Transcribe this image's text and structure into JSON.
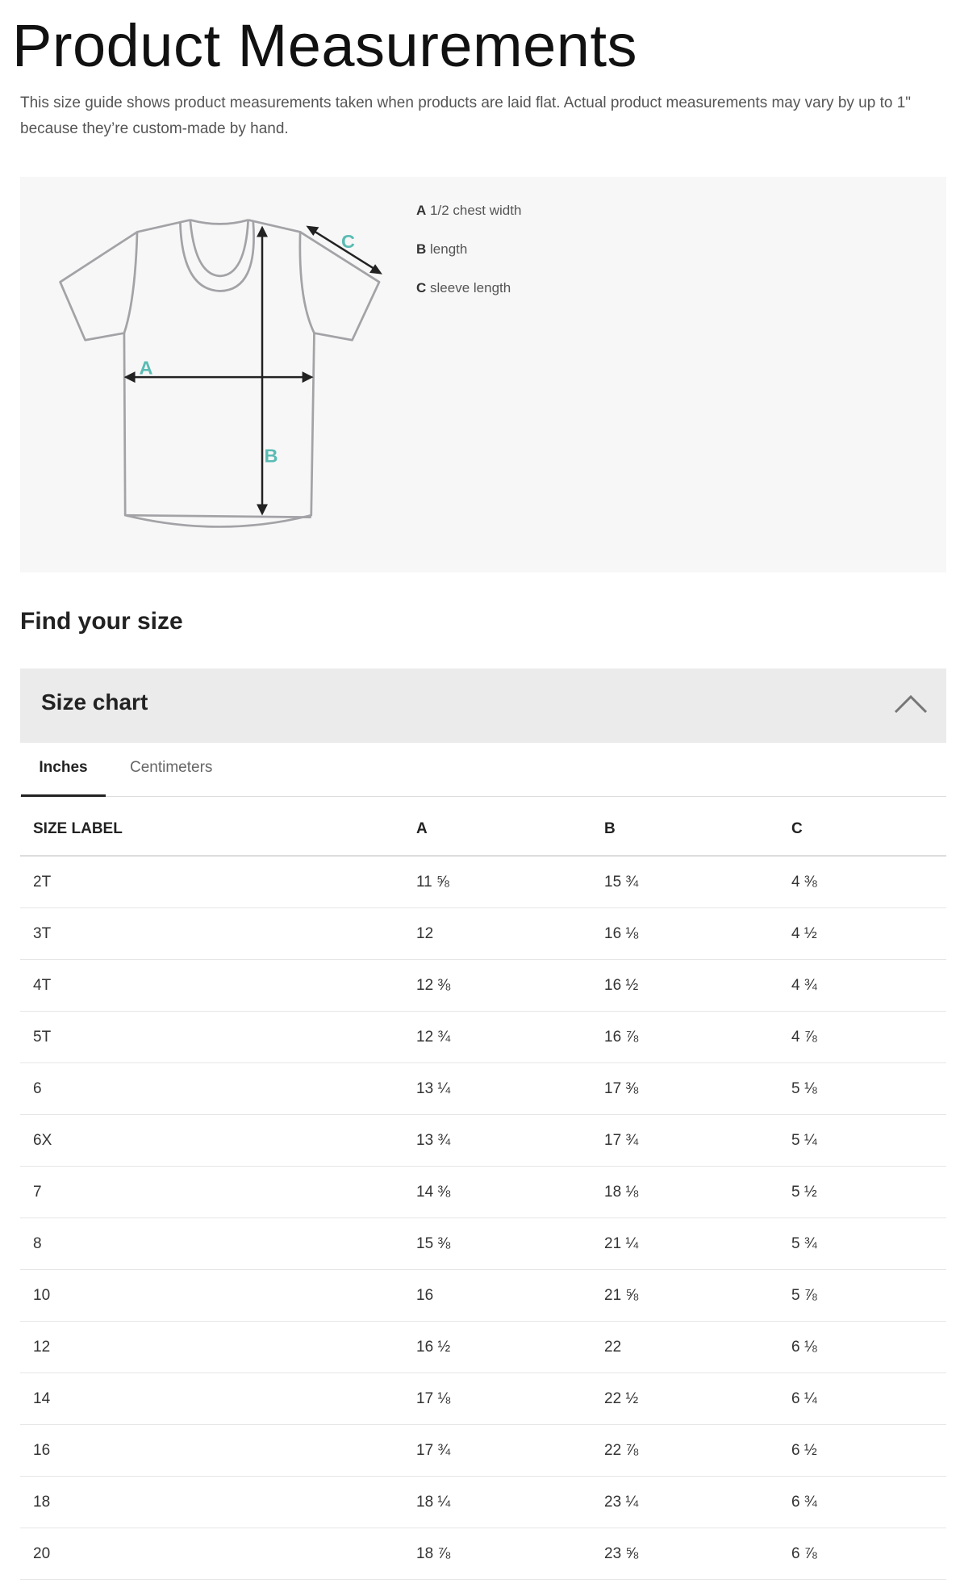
{
  "page": {
    "title": "Product Measurements",
    "intro": "This size guide shows product measurements taken when products are laid flat. Actual product measurements may vary by up to 1\" because they’re custom-made by hand."
  },
  "diagram": {
    "accent_color": "#5bbcb4",
    "markers": {
      "a": "A",
      "b": "B",
      "c": "C"
    },
    "legend": [
      {
        "key": "A",
        "label": "1/2 chest width"
      },
      {
        "key": "B",
        "label": "length"
      },
      {
        "key": "C",
        "label": "sleeve length"
      }
    ]
  },
  "find_size": {
    "heading": "Find your size"
  },
  "size_chart": {
    "title": "Size chart",
    "expanded": true,
    "tabs": [
      {
        "label": "Inches",
        "active": true
      },
      {
        "label": "Centimeters",
        "active": false
      }
    ],
    "columns": [
      "SIZE LABEL",
      "A",
      "B",
      "C"
    ],
    "rows": [
      [
        "2T",
        "11 ⅝",
        "15 ¾",
        "4 ⅜"
      ],
      [
        "3T",
        "12",
        "16 ⅛",
        "4 ½"
      ],
      [
        "4T",
        "12 ⅜",
        "16 ½",
        "4 ¾"
      ],
      [
        "5T",
        "12 ¾",
        "16 ⅞",
        "4 ⅞"
      ],
      [
        "6",
        "13 ¼",
        "17 ⅜",
        "5 ⅛"
      ],
      [
        "6X",
        "13 ¾",
        "17 ¾",
        "5 ¼"
      ],
      [
        "7",
        "14 ⅜",
        "18 ⅛",
        "5 ½"
      ],
      [
        "8",
        "15 ⅜",
        "21 ¼",
        "5 ¾"
      ],
      [
        "10",
        "16",
        "21 ⅝",
        "5 ⅞"
      ],
      [
        "12",
        "16 ½",
        "22",
        "6 ⅛"
      ],
      [
        "14",
        "17 ⅛",
        "22 ½",
        "6 ¼"
      ],
      [
        "16",
        "17 ¾",
        "22 ⅞",
        "6 ½"
      ],
      [
        "18",
        "18 ¼",
        "23 ¼",
        "6 ¾"
      ],
      [
        "20",
        "18 ⅞",
        "23 ⅝",
        "6 ⅞"
      ]
    ]
  }
}
